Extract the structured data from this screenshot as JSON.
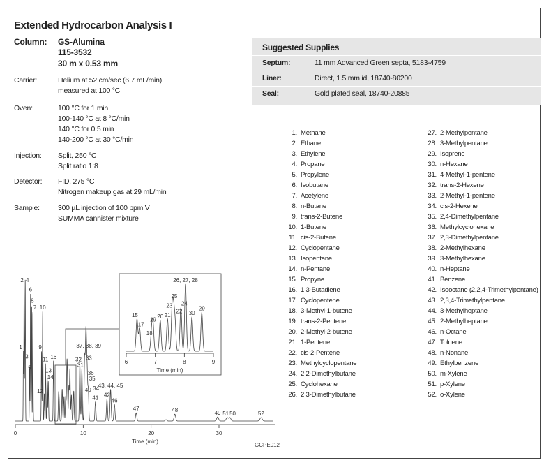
{
  "title": "Extended Hydrocarbon Analysis I",
  "conditions": {
    "column": {
      "label": "Column:",
      "lines": [
        "GS-Alumina",
        "115-3532",
        "30 m x 0.53 mm"
      ]
    },
    "carrier": {
      "label": "Carrier:",
      "lines": [
        "Helium at 52 cm/sec (6.7 mL/min),",
        "measured at 100 °C"
      ]
    },
    "oven": {
      "label": "Oven:",
      "lines": [
        "100 °C for 1 min",
        "100-140 °C at 8 °C/min",
        "140 °C for 0.5 min",
        "140-200 °C at 30 °C/min"
      ]
    },
    "injection": {
      "label": "Injection:",
      "lines": [
        "Split, 250 °C",
        "Split ratio 1:8"
      ]
    },
    "detector": {
      "label": "Detector:",
      "lines": [
        "FID, 275 °C",
        "Nitrogen makeup gas at 29 mL/min"
      ]
    },
    "sample": {
      "label": "Sample:",
      "lines": [
        "300 µL injection of 100 ppm V",
        "SUMMA cannister mixture"
      ]
    }
  },
  "supplies": {
    "title": "Suggested Supplies",
    "rows": [
      {
        "label": "Septum:",
        "value": "11 mm Advanced Green septa, 5183-4759"
      },
      {
        "label": "Liner:",
        "value": "Direct, 1.5 mm id, 18740-80200"
      },
      {
        "label": "Seal:",
        "value": "Gold plated seal, 18740-20885"
      }
    ]
  },
  "compounds": [
    "Methane",
    "Ethane",
    "Ethylene",
    "Propane",
    "Propylene",
    "Isobutane",
    "Acetylene",
    "n-Butane",
    "trans-2-Butene",
    "1-Butene",
    "cis-2-Butene",
    "Cyclopentane",
    "Isopentane",
    "n-Pentane",
    "Propyne",
    "1,3-Butadiene",
    "Cyclopentene",
    "3-Methyl-1-butene",
    "trans-2-Pentene",
    "2-Methyl-2-butene",
    "1-Pentene",
    "cis-2-Pentene",
    "Methylcyclopentane",
    "2,2-Dimethylbutane",
    "Cyclohexane",
    "2,3-Dimethylbutane",
    "2-Methylpentane",
    "3-Methylpentane",
    "Isoprene",
    "n-Hexane",
    "4-Methyl-1-pentene",
    "trans-2-Hexene",
    "2-Methyl-1-pentene",
    "cis-2-Hexene",
    "2,4-Dimethylpentane",
    "Methylcyclohexane",
    "2,3-Dimethylpentane",
    "2-Methylhexane",
    "3-Methylhexane",
    "n-Heptane",
    "Benzene",
    "Isooctane (2,2,4-Trimethylpentane)",
    "2,3,4-Trimethylpentane",
    "3-Methylheptane",
    "2-Methylheptane",
    "n-Octane",
    "Toluene",
    "n-Nonane",
    "Ethylbenzene",
    "m-Xylene",
    "p-Xylene",
    "o-Xylene"
  ],
  "figure_code": "GCPE012",
  "chart_data": [
    {
      "type": "line",
      "title": "",
      "xlabel": "Time (min)",
      "ylabel": "",
      "xlim": [
        0,
        38
      ],
      "ylim": [
        0,
        100
      ],
      "xticks": [
        "0",
        "10",
        "20",
        "30"
      ],
      "peaks": [
        {
          "label": "1",
          "t": 1.19,
          "h": 51
        },
        {
          "label": "2",
          "t": 1.29,
          "h": 100
        },
        {
          "label": "3",
          "t": 1.39,
          "h": 40
        },
        {
          "label": "4",
          "t": 1.46,
          "h": 100
        },
        {
          "label": "5",
          "t": 2.1,
          "h": 40
        },
        {
          "label": "6",
          "t": 2.24,
          "h": 93
        },
        {
          "label": "8",
          "t": 2.4,
          "h": 85
        },
        {
          "label": "7",
          "t": 2.58,
          "h": 80
        },
        {
          "label": "9",
          "t": 3.86,
          "h": 51
        },
        {
          "label": "10",
          "t": 4.03,
          "h": 80
        },
        {
          "label": "12",
          "t": 4.27,
          "h": 20
        },
        {
          "label": "11",
          "t": 4.44,
          "h": 42
        },
        {
          "label": "13",
          "t": 4.68,
          "h": 34
        },
        {
          "label": "14",
          "t": 4.85,
          "h": 29
        },
        {
          "label": "16",
          "t": 5.63,
          "h": 44
        },
        {
          "label": "",
          "t": 6.37,
          "h": 18
        },
        {
          "label": "",
          "t": 6.46,
          "h": 13
        },
        {
          "label": "",
          "t": 6.87,
          "h": 10
        },
        {
          "label": "",
          "t": 6.92,
          "h": 16
        },
        {
          "label": "",
          "t": 7.17,
          "h": 18
        },
        {
          "label": "",
          "t": 7.42,
          "h": 18
        },
        {
          "label": "",
          "t": 7.58,
          "h": 24
        },
        {
          "label": "",
          "t": 7.63,
          "h": 19
        },
        {
          "label": "",
          "t": 7.68,
          "h": 15
        },
        {
          "label": "",
          "t": 7.88,
          "h": 25
        },
        {
          "label": "",
          "t": 8.04,
          "h": 38
        },
        {
          "label": "",
          "t": 8.26,
          "h": 19
        },
        {
          "label": "",
          "t": 8.6,
          "h": 22
        },
        {
          "label": "32",
          "t": 9.5,
          "h": 42
        },
        {
          "label": "31",
          "t": 9.8,
          "h": 38
        },
        {
          "label": "33",
          "t": 10.2,
          "h": 40
        },
        {
          "label": "40",
          "t": 10.3,
          "h": 20
        },
        {
          "label": "37, 38, 39",
          "t": 10.4,
          "h": 52
        },
        {
          "label": "36",
          "t": 10.5,
          "h": 30
        },
        {
          "label": "35",
          "t": 10.6,
          "h": 26
        },
        {
          "label": "34",
          "t": 10.75,
          "h": 22
        },
        {
          "label": "41",
          "t": 11.8,
          "h": 14
        },
        {
          "label": "42",
          "t": 13.5,
          "h": 16
        },
        {
          "label": "43, 44, 45",
          "t": 14.03,
          "h": 23
        },
        {
          "label": "46",
          "t": 14.6,
          "h": 12
        },
        {
          "label": "47",
          "t": 17.8,
          "h": 6
        },
        {
          "label": "",
          "t": 22.2,
          "h": 1
        },
        {
          "label": "48",
          "t": 23.5,
          "h": 5
        },
        {
          "label": "49",
          "t": 29.8,
          "h": 3
        },
        {
          "label": "51",
          "t": 31.2,
          "h": 2.5
        },
        {
          "label": "50",
          "t": 31.6,
          "h": 2.5
        },
        {
          "label": "52",
          "t": 36.2,
          "h": 2.5
        }
      ]
    },
    {
      "type": "line",
      "title": "inset",
      "xlabel": "Time (min)",
      "xlim": [
        6,
        9
      ],
      "ylim": [
        0,
        100
      ],
      "xticks": [
        "6",
        "7",
        "8",
        "9"
      ],
      "peaks": [
        {
          "label": "15",
          "t": 6.37,
          "h": 48
        },
        {
          "label": "17",
          "t": 6.46,
          "h": 34
        },
        {
          "label": "18",
          "t": 6.87,
          "h": 27
        },
        {
          "label": "19",
          "t": 6.92,
          "h": 41
        },
        {
          "label": "20",
          "t": 7.17,
          "h": 46
        },
        {
          "label": "21",
          "t": 7.42,
          "h": 48
        },
        {
          "label": "23",
          "t": 7.58,
          "h": 62
        },
        {
          "label": "25",
          "t": 7.63,
          "h": 50
        },
        {
          "label": "22",
          "t": 7.68,
          "h": 40
        },
        {
          "label": "24",
          "t": 7.88,
          "h": 65
        },
        {
          "label": "26, 27, 28",
          "t": 8.04,
          "h": 100
        },
        {
          "label": "30",
          "t": 8.26,
          "h": 51
        },
        {
          "label": "29",
          "t": 8.6,
          "h": 58
        }
      ]
    }
  ]
}
